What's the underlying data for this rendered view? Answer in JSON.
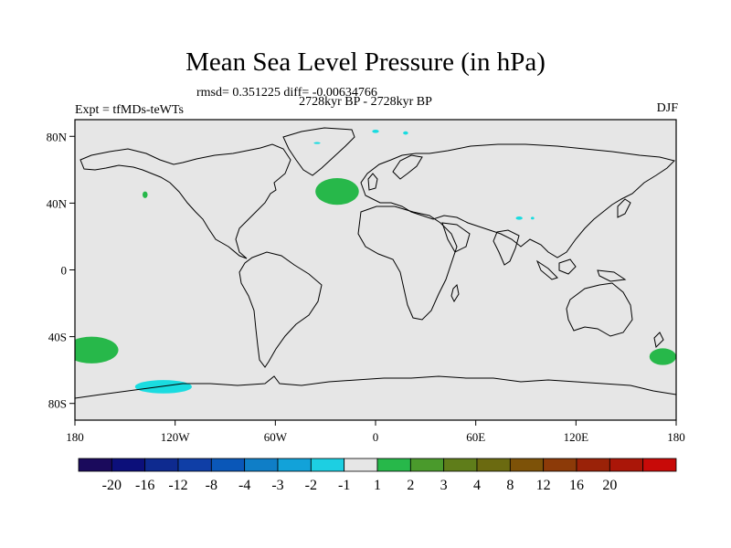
{
  "title": "Mean Sea Level Pressure (in hPa)",
  "subtitle_stats": "rmsd= 0.351225 diff= -0.00634766",
  "subtitle_periods": "2728kyr BP - 2728kyr BP",
  "experiment_label": "Expt = tfMDs-teWTs",
  "season_label": "DJF",
  "map": {
    "projection": "cylindrical-equidistant",
    "lon_range": [
      -180,
      180
    ],
    "lat_range": [
      -90,
      90
    ],
    "background_color": "#e6e6e6",
    "lat_ticks": [
      {
        "value": 80,
        "label": "80N"
      },
      {
        "value": 40,
        "label": "40N"
      },
      {
        "value": 0,
        "label": "0"
      },
      {
        "value": -40,
        "label": "40S"
      },
      {
        "value": -80,
        "label": "80S"
      }
    ],
    "lon_ticks": [
      {
        "value": -180,
        "label": "180"
      },
      {
        "value": -120,
        "label": "120W"
      },
      {
        "value": -60,
        "label": "60W"
      },
      {
        "value": 0,
        "label": "0"
      },
      {
        "value": 60,
        "label": "60E"
      },
      {
        "value": 120,
        "label": "120E"
      },
      {
        "value": 180,
        "label": "180"
      }
    ],
    "anomaly_regions": [
      {
        "name": "north-atlantic-positive",
        "color": "#27b84a",
        "lon": -23,
        "lat": 47,
        "rx_deg": 13,
        "ry_deg": 8
      },
      {
        "name": "north-pacific-positive",
        "color": "#27b84a",
        "lon": -138,
        "lat": 45,
        "rx_deg": 1.5,
        "ry_deg": 2
      },
      {
        "name": "south-pacific-positive-west",
        "color": "#27b84a",
        "lon": -170,
        "lat": -48,
        "rx_deg": 16,
        "ry_deg": 8
      },
      {
        "name": "south-pacific-positive-east",
        "color": "#27b84a",
        "lon": 172,
        "lat": -52,
        "rx_deg": 8,
        "ry_deg": 5
      },
      {
        "name": "southern-ocean-negative",
        "color": "#1adce0",
        "lon": -127,
        "lat": -70,
        "rx_deg": 17,
        "ry_deg": 4
      },
      {
        "name": "arctic-negative-1",
        "color": "#1adce0",
        "lon": 0,
        "lat": 83,
        "rx_deg": 2,
        "ry_deg": 1
      },
      {
        "name": "arctic-negative-2",
        "color": "#1adce0",
        "lon": 18,
        "lat": 82,
        "rx_deg": 1.5,
        "ry_deg": 1
      },
      {
        "name": "arctic-negative-3",
        "color": "#1adce0",
        "lon": -35,
        "lat": 76,
        "rx_deg": 2,
        "ry_deg": 0.6
      },
      {
        "name": "central-asia-negative-1",
        "color": "#1adce0",
        "lon": 86,
        "lat": 31,
        "rx_deg": 2,
        "ry_deg": 1
      },
      {
        "name": "central-asia-negative-2",
        "color": "#1adce0",
        "lon": 94,
        "lat": 31,
        "rx_deg": 1,
        "ry_deg": 0.8
      }
    ]
  },
  "colorbar": {
    "colors": [
      "#1a0a5c",
      "#0c0f7a",
      "#0e2a8f",
      "#0f3ea6",
      "#0a57b8",
      "#0f7ec7",
      "#12a2d9",
      "#1dcfe2",
      "#e6e6e6",
      "#27b84a",
      "#4a9a2c",
      "#5f7d1a",
      "#6b6a10",
      "#7d5208",
      "#8c3a08",
      "#9a2208",
      "#aa1608",
      "#c80a08"
    ],
    "labels": [
      "-20",
      "-16",
      "-12",
      "-8",
      "-4",
      "-3",
      "-2",
      "-1",
      "1",
      "2",
      "3",
      "4",
      "8",
      "12",
      "16",
      "20"
    ]
  }
}
